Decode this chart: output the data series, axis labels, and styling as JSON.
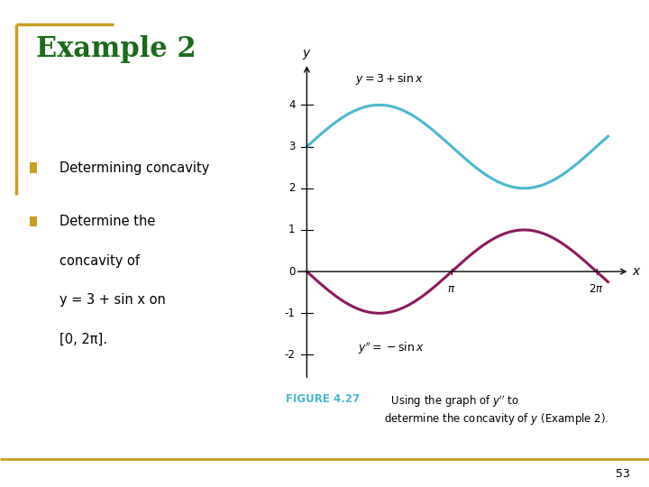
{
  "title": "Example 2",
  "title_color": "#1a6b1a",
  "bullet_color": "#c8a020",
  "bullet1": "Determining concavity",
  "bullet2_line1": "Determine the",
  "bullet2_line2": "concavity of",
  "bullet2_line3": "y = 3 + sin x on",
  "bullet2_line4": "[0, 2π].",
  "curve1_color": "#4ab8d0",
  "curve2_color": "#8b1a5a",
  "curve1_label": "$y = 3 + \\sin x$",
  "curve2_label": "$y'' = -\\sin x$",
  "y_ticks": [
    -2,
    -1,
    1,
    2,
    3,
    4
  ],
  "ylim": [
    -2.6,
    5.0
  ],
  "xlim": [
    -0.25,
    7.0
  ],
  "fig_bg": "#ffffff",
  "border_color": "#c8a020",
  "figure_caption_bold": "FIGURE 4.27",
  "figure_caption_bold_color": "#4ab8d0",
  "figure_caption_text": "  Using the graph of $y''$ to determine the concavity of $y$ (Example 2).",
  "page_number": "53",
  "plot_bg": "#ffffff"
}
